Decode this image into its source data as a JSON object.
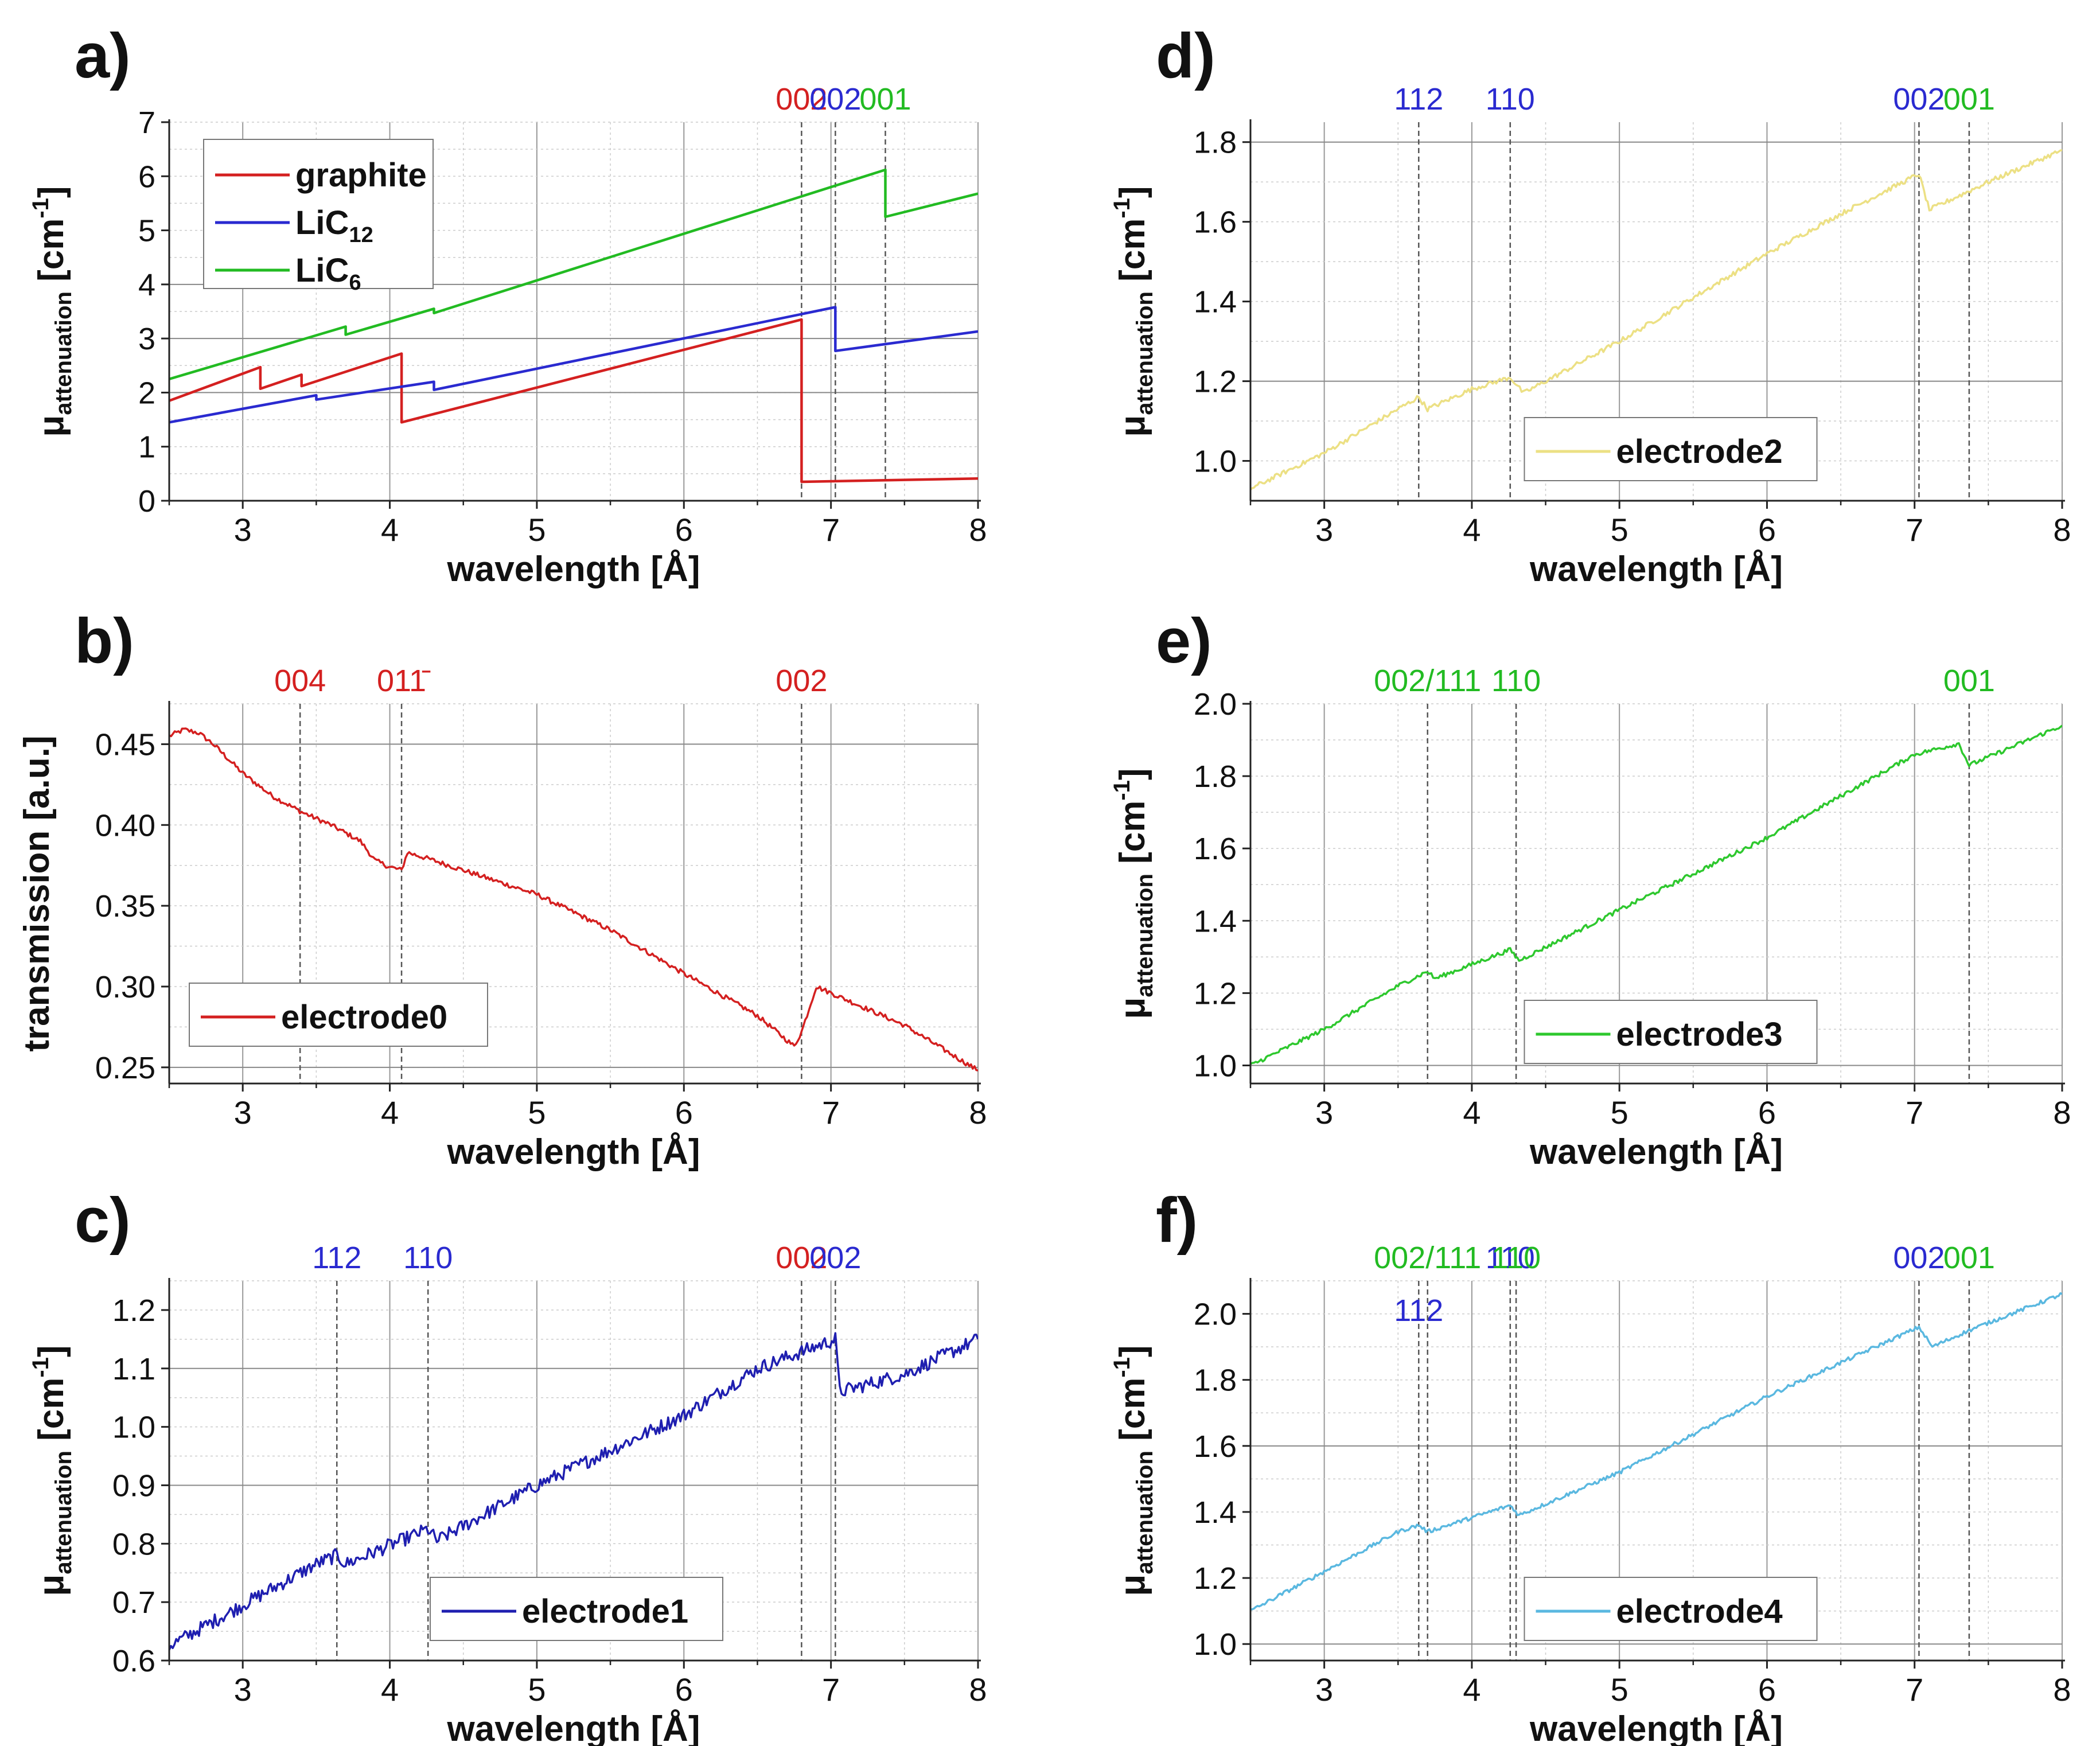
{
  "figure": {
    "xlabel": "wavelength [Å]"
  },
  "chart_data": [
    {
      "panel": "a)",
      "type": "line",
      "xlim": [
        2.5,
        8
      ],
      "ylim": [
        0,
        7
      ],
      "xticks": [
        "3",
        "4",
        "5",
        "6",
        "7",
        "8"
      ],
      "yticks": [
        "0",
        "1",
        "2",
        "3",
        "4",
        "5",
        "6",
        "7"
      ],
      "xtick_values": [
        3,
        4,
        5,
        6,
        7,
        8
      ],
      "ytick_values": [
        0,
        1,
        2,
        3,
        4,
        5,
        6,
        7
      ],
      "xlabel": "wavelength [Å]",
      "ylabel": {
        "base": "μ",
        "sub": "attenuation",
        "rest": " [cm",
        "sup": "-1",
        "end": "]"
      },
      "gridlines": [
        2,
        3,
        4
      ],
      "edge_lines": [
        {
          "x": 6.8,
          "label": "002",
          "color": "#d42020"
        },
        {
          "x": 7.03,
          "label": "002",
          "color": "#2a2ad0"
        },
        {
          "x": 7.37,
          "label": "001",
          "color": "#22bb22"
        }
      ],
      "legend": {
        "position": "top-left",
        "entries": [
          {
            "label": "graphite",
            "sub": "",
            "color": "#d42020"
          },
          {
            "label": "LiC",
            "sub": "12",
            "color": "#2a2ad0"
          },
          {
            "label": "LiC",
            "sub": "6",
            "color": "#22bb22"
          }
        ]
      },
      "series": [
        {
          "name": "graphite",
          "color": "#d42020",
          "kind": "steps",
          "segments": [
            [
              2.5,
              1.85,
              3.12,
              2.47
            ],
            [
              3.12,
              2.07,
              3.4,
              2.33
            ],
            [
              3.4,
              2.12,
              4.08,
              2.72
            ],
            [
              4.08,
              1.45,
              6.8,
              3.35
            ],
            [
              6.8,
              0.35,
              8.0,
              0.41
            ]
          ]
        },
        {
          "name": "LiC12",
          "color": "#2a2ad0",
          "kind": "steps",
          "segments": [
            [
              2.5,
              1.45,
              3.5,
              1.95
            ],
            [
              3.5,
              1.87,
              4.3,
              2.2
            ],
            [
              4.3,
              2.05,
              7.03,
              3.58
            ],
            [
              7.03,
              2.77,
              8.0,
              3.13
            ]
          ]
        },
        {
          "name": "LiC6",
          "color": "#22bb22",
          "kind": "steps",
          "segments": [
            [
              2.5,
              2.25,
              3.7,
              3.22
            ],
            [
              3.7,
              3.07,
              4.3,
              3.55
            ],
            [
              4.3,
              3.47,
              7.37,
              6.12
            ],
            [
              7.37,
              5.25,
              8.0,
              5.68
            ]
          ]
        }
      ]
    },
    {
      "panel": "b)",
      "type": "line",
      "xlim": [
        2.5,
        8
      ],
      "ylim": [
        0.24,
        0.475
      ],
      "xticks": [
        "3",
        "4",
        "5",
        "6",
        "7",
        "8"
      ],
      "yticks": [
        "0.25",
        "0.30",
        "0.35",
        "0.40",
        "0.45"
      ],
      "xtick_values": [
        3,
        4,
        5,
        6,
        7,
        8
      ],
      "ytick_values": [
        0.25,
        0.3,
        0.35,
        0.4,
        0.45
      ],
      "xlabel": "wavelength [Å]",
      "ylabel": {
        "base": "transmission [a.u.]",
        "sub": "",
        "rest": "",
        "sup": "",
        "end": ""
      },
      "gridlines": [
        0.45,
        0.25
      ],
      "edge_lines": [
        {
          "x": 3.39,
          "label": "004",
          "color": "#d42020"
        },
        {
          "x": 4.08,
          "label": "011̄",
          "color": "#d42020"
        },
        {
          "x": 6.8,
          "label": "002",
          "color": "#d42020"
        }
      ],
      "legend": {
        "position": "bottom-left",
        "entries": [
          {
            "label": "electrode0",
            "sub": "",
            "color": "#d42020"
          }
        ]
      },
      "series": [
        {
          "name": "electrode0",
          "color": "#d42020",
          "kind": "noisy",
          "noise": 0.0015,
          "points": [
            [
              2.5,
              0.455
            ],
            [
              2.6,
              0.459
            ],
            [
              2.7,
              0.457
            ],
            [
              2.8,
              0.45
            ],
            [
              3.0,
              0.432
            ],
            [
              3.2,
              0.418
            ],
            [
              3.4,
              0.408
            ],
            [
              3.6,
              0.4
            ],
            [
              3.8,
              0.39
            ],
            [
              3.9,
              0.378
            ],
            [
              4.0,
              0.374
            ],
            [
              4.08,
              0.372
            ],
            [
              4.12,
              0.383
            ],
            [
              4.3,
              0.378
            ],
            [
              4.5,
              0.372
            ],
            [
              5.0,
              0.357
            ],
            [
              5.5,
              0.335
            ],
            [
              6.0,
              0.308
            ],
            [
              6.5,
              0.282
            ],
            [
              6.75,
              0.263
            ],
            [
              6.8,
              0.272
            ],
            [
              6.9,
              0.3
            ],
            [
              7.0,
              0.296
            ],
            [
              7.5,
              0.276
            ],
            [
              8.0,
              0.248
            ]
          ]
        }
      ]
    },
    {
      "panel": "c)",
      "type": "line",
      "xlim": [
        2.5,
        8
      ],
      "ylim": [
        0.6,
        1.25
      ],
      "xticks": [
        "3",
        "4",
        "5",
        "6",
        "7",
        "8"
      ],
      "yticks": [
        "0.6",
        "0.7",
        "0.8",
        "0.9",
        "1.0",
        "1.1",
        "1.2"
      ],
      "xtick_values": [
        3,
        4,
        5,
        6,
        7,
        8
      ],
      "ytick_values": [
        0.6,
        0.7,
        0.8,
        0.9,
        1.0,
        1.1,
        1.2
      ],
      "xlabel": "wavelength [Å]",
      "ylabel": {
        "base": "μ",
        "sub": "attenuation",
        "rest": " [cm",
        "sup": "-1",
        "end": "]"
      },
      "gridlines": [
        1.1,
        0.9
      ],
      "edge_lines": [
        {
          "x": 3.64,
          "label": "112",
          "color": "#2a2ad0"
        },
        {
          "x": 4.26,
          "label": "110",
          "color": "#2a2ad0"
        },
        {
          "x": 6.8,
          "label": "002",
          "color": "#d42020"
        },
        {
          "x": 7.03,
          "label": "002",
          "color": "#2a2ad0"
        }
      ],
      "legend": {
        "position": "bottom-center",
        "entries": [
          {
            "label": "electrode1",
            "sub": "",
            "color": "#1f1fb0"
          }
        ]
      },
      "series": [
        {
          "name": "electrode1",
          "color": "#1f1fb0",
          "kind": "noisy",
          "noise": 0.012,
          "points": [
            [
              2.5,
              0.625
            ],
            [
              3.0,
              0.695
            ],
            [
              3.5,
              0.765
            ],
            [
              3.64,
              0.78
            ],
            [
              3.7,
              0.765
            ],
            [
              4.26,
              0.825
            ],
            [
              4.32,
              0.805
            ],
            [
              5.0,
              0.9
            ],
            [
              5.5,
              0.96
            ],
            [
              6.0,
              1.02
            ],
            [
              6.5,
              1.1
            ],
            [
              7.03,
              1.15
            ],
            [
              7.06,
              1.06
            ],
            [
              7.5,
              1.09
            ],
            [
              8.0,
              1.15
            ]
          ]
        }
      ]
    },
    {
      "panel": "d)",
      "type": "line",
      "xlim": [
        2.5,
        8
      ],
      "ylim": [
        0.9,
        1.85
      ],
      "xticks": [
        "3",
        "4",
        "5",
        "6",
        "7",
        "8"
      ],
      "yticks": [
        "1.0",
        "1.2",
        "1.4",
        "1.6",
        "1.8"
      ],
      "xtick_values": [
        3,
        4,
        5,
        6,
        7,
        8
      ],
      "ytick_values": [
        1.0,
        1.2,
        1.4,
        1.6,
        1.8
      ],
      "xlabel": "wavelength [Å]",
      "ylabel": {
        "base": "μ",
        "sub": "attenuation",
        "rest": " [cm",
        "sup": "-1",
        "end": "]"
      },
      "gridlines": [
        1.8,
        1.2
      ],
      "edge_lines": [
        {
          "x": 3.64,
          "label": "112",
          "color": "#2a2ad0"
        },
        {
          "x": 4.26,
          "label": "110",
          "color": "#2a2ad0"
        },
        {
          "x": 7.03,
          "label": "002",
          "color": "#2a2ad0"
        },
        {
          "x": 7.37,
          "label": "001",
          "color": "#22bb22"
        }
      ],
      "legend": {
        "position": "bottom-center",
        "entries": [
          {
            "label": "electrode2",
            "sub": "",
            "color": "#ece084"
          }
        ]
      },
      "series": [
        {
          "name": "electrode2",
          "color": "#ece084",
          "kind": "noisy",
          "noise": 0.006,
          "points": [
            [
              2.5,
              0.93
            ],
            [
              3.0,
              1.02
            ],
            [
              3.5,
              1.13
            ],
            [
              3.64,
              1.16
            ],
            [
              3.7,
              1.13
            ],
            [
              4.0,
              1.18
            ],
            [
              4.26,
              1.21
            ],
            [
              4.35,
              1.17
            ],
            [
              5.0,
              1.3
            ],
            [
              6.0,
              1.52
            ],
            [
              6.5,
              1.62
            ],
            [
              7.03,
              1.72
            ],
            [
              7.1,
              1.63
            ],
            [
              7.5,
              1.7
            ],
            [
              8.0,
              1.78
            ]
          ]
        }
      ]
    },
    {
      "panel": "e)",
      "type": "line",
      "xlim": [
        2.5,
        8
      ],
      "ylim": [
        0.95,
        2.0
      ],
      "xticks": [
        "3",
        "4",
        "5",
        "6",
        "7",
        "8"
      ],
      "yticks": [
        "1.0",
        "1.2",
        "1.4",
        "1.6",
        "1.8",
        "2.0"
      ],
      "xtick_values": [
        3,
        4,
        5,
        6,
        7,
        8
      ],
      "ytick_values": [
        1.0,
        1.2,
        1.4,
        1.6,
        1.8,
        2.0
      ],
      "xlabel": "wavelength [Å]",
      "ylabel": {
        "base": "μ",
        "sub": "attenuation",
        "rest": " [cm",
        "sup": "-1",
        "end": "]"
      },
      "gridlines": [
        1.0
      ],
      "edge_lines": [
        {
          "x": 3.7,
          "label": "002/111",
          "color": "#22bb22"
        },
        {
          "x": 4.3,
          "label": "110",
          "color": "#22bb22"
        },
        {
          "x": 7.37,
          "label": "001",
          "color": "#22bb22"
        }
      ],
      "legend": {
        "position": "bottom-center",
        "entries": [
          {
            "label": "electrode3",
            "sub": "",
            "color": "#2ec82e"
          }
        ]
      },
      "series": [
        {
          "name": "electrode3",
          "color": "#2ec82e",
          "kind": "noisy",
          "noise": 0.006,
          "points": [
            [
              2.5,
              1.0
            ],
            [
              3.0,
              1.1
            ],
            [
              3.5,
              1.22
            ],
            [
              3.7,
              1.26
            ],
            [
              3.75,
              1.24
            ],
            [
              4.26,
              1.32
            ],
            [
              4.32,
              1.29
            ],
            [
              5.0,
              1.43
            ],
            [
              6.0,
              1.63
            ],
            [
              7.0,
              1.86
            ],
            [
              7.3,
              1.89
            ],
            [
              7.37,
              1.83
            ],
            [
              7.6,
              1.87
            ],
            [
              8.0,
              1.94
            ]
          ]
        }
      ]
    },
    {
      "panel": "f)",
      "type": "line",
      "xlim": [
        2.5,
        8
      ],
      "ylim": [
        0.95,
        2.1
      ],
      "xticks": [
        "3",
        "4",
        "5",
        "6",
        "7",
        "8"
      ],
      "yticks": [
        "1.0",
        "1.2",
        "1.4",
        "1.6",
        "1.8",
        "2.0"
      ],
      "xtick_values": [
        3,
        4,
        5,
        6,
        7,
        8
      ],
      "ytick_values": [
        1.0,
        1.2,
        1.4,
        1.6,
        1.8,
        2.0
      ],
      "xlabel": "wavelength [Å]",
      "ylabel": {
        "base": "μ",
        "sub": "attenuation",
        "rest": " [cm",
        "sup": "-1",
        "end": "]"
      },
      "gridlines": [
        1.6,
        1.0
      ],
      "edge_lines": [
        {
          "x": 3.64,
          "label": "112",
          "color": "#2a2ad0",
          "row": 2
        },
        {
          "x": 3.7,
          "label": "002/111",
          "color": "#22bb22"
        },
        {
          "x": 4.26,
          "label": "110",
          "color": "#2a2ad0"
        },
        {
          "x": 4.3,
          "label": "110",
          "color": "#22bb22"
        },
        {
          "x": 7.03,
          "label": "002",
          "color": "#2a2ad0"
        },
        {
          "x": 7.37,
          "label": "001",
          "color": "#22bb22"
        }
      ],
      "legend": {
        "position": "bottom-center",
        "entries": [
          {
            "label": "electrode4",
            "sub": "",
            "color": "#5ab8e0"
          }
        ]
      },
      "series": [
        {
          "name": "electrode4",
          "color": "#5ab8e0",
          "kind": "noisy",
          "noise": 0.006,
          "points": [
            [
              2.5,
              1.1
            ],
            [
              3.0,
              1.22
            ],
            [
              3.5,
              1.34
            ],
            [
              3.64,
              1.36
            ],
            [
              3.7,
              1.34
            ],
            [
              4.26,
              1.42
            ],
            [
              4.32,
              1.39
            ],
            [
              5.0,
              1.52
            ],
            [
              6.0,
              1.75
            ],
            [
              7.03,
              1.96
            ],
            [
              7.12,
              1.9
            ],
            [
              7.37,
              1.95
            ],
            [
              8.0,
              2.06
            ]
          ]
        }
      ]
    }
  ]
}
